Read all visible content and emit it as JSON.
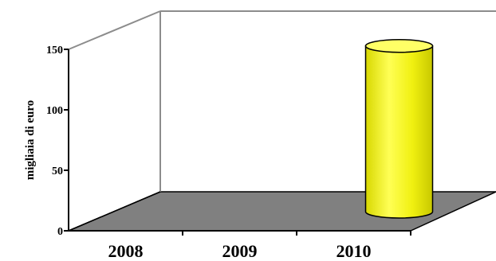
{
  "chart_data": {
    "type": "bar",
    "style": "3d-cylinder",
    "categories": [
      "2008",
      "2009",
      "2010"
    ],
    "values": [
      0,
      0,
      137
    ],
    "ylabel": "migliaia di euro",
    "xlabel": "",
    "ylim": [
      0,
      150
    ],
    "yticks": [
      "0",
      "50",
      "100",
      "150"
    ],
    "grid": false,
    "legend": "none",
    "colors": {
      "bar": "#f2f21a",
      "bar_light": "#ffff66",
      "bar_dark": "#c8c800",
      "floor": "#808080",
      "wall_edge": "#8c8c8c"
    }
  }
}
